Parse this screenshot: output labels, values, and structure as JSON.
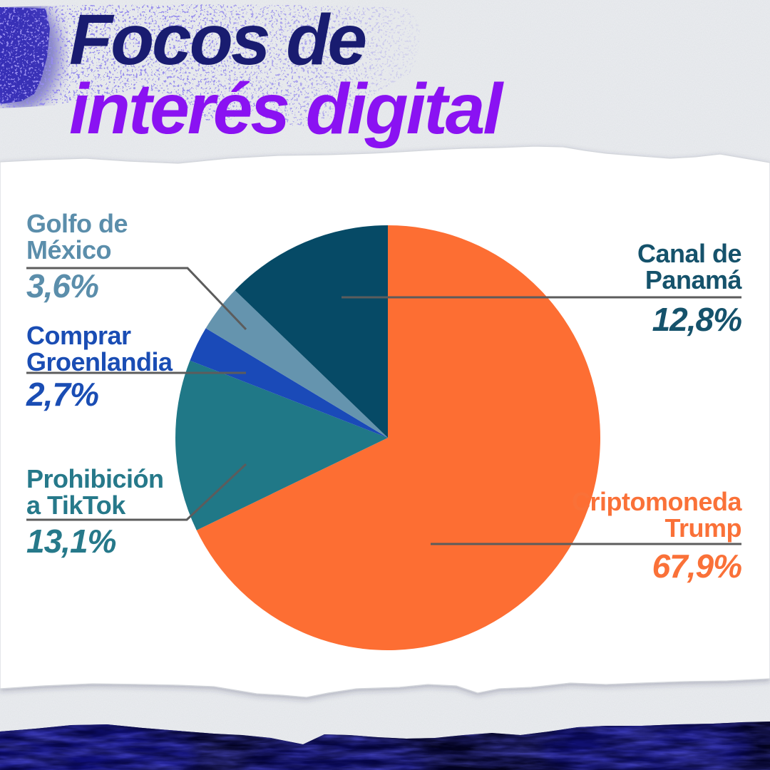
{
  "header": {
    "title_line1": "Focos de",
    "title_line2": "interés digital"
  },
  "chart_data": {
    "type": "pie",
    "title": "Focos de interés digital",
    "direction": "clockwise",
    "start_angle": "12 o'clock",
    "legend_position": "callout-labels",
    "segments": [
      {
        "key": "cripto",
        "name": "Criptomoneda Trump",
        "label_line1": "Criptomoneda",
        "label_line2": "Trump",
        "value": 67.9,
        "value_label": "67,9%",
        "color": "#FD6E33",
        "label_color": "#FA7138"
      },
      {
        "key": "tiktok",
        "name": "Prohibición a TikTok",
        "label_line1": "Prohibición",
        "label_line2": "a TikTok",
        "value": 13.1,
        "value_label": "13,1%",
        "color": "#207887",
        "label_color": "#26798A"
      },
      {
        "key": "groenlandia",
        "name": "Comprar Groenlandia",
        "label_line1": "Comprar",
        "label_line2": "Groenlandia",
        "value": 2.7,
        "value_label": "2,7%",
        "color": "#1A4AB8",
        "label_color": "#1A4DB4"
      },
      {
        "key": "golfo",
        "name": "Golfo de México",
        "label_line1": "Golfo de",
        "label_line2": "México",
        "value": 3.6,
        "value_label": "3,6%",
        "color": "#6594AE",
        "label_color": "#5B8EAB"
      },
      {
        "key": "canal",
        "name": "Canal de Panamá",
        "label_line1": "Canal de",
        "label_line2": "Panamá",
        "value": 12.8,
        "value_label": "12,8%",
        "color": "#064A66",
        "label_color": "#15526B"
      }
    ]
  },
  "colors": {
    "title_line1": "#191C70",
    "title_line2": "#8A12F2",
    "leader_line": "#5C5C5C",
    "paper_strip": "#ECEEF1",
    "sheet": "#FFFFFF",
    "speckle": "#4A3FD6",
    "speckle_dense": "#3A31C4",
    "bottom_band_base": "#04041F",
    "bottom_band_blue": "#1D1DC0"
  }
}
